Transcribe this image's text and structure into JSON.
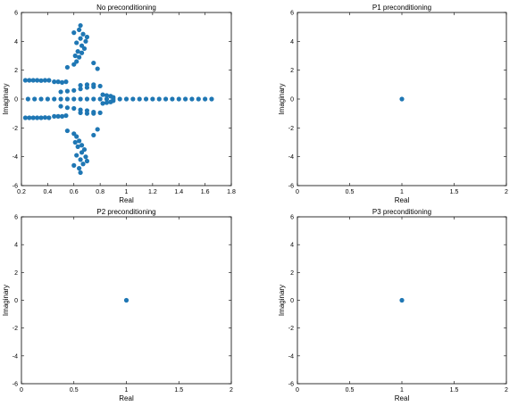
{
  "figure": {
    "marker_color": "#1f77b4",
    "axis_color": "#000000",
    "background": "#ffffff"
  },
  "chart_data": [
    {
      "type": "scatter",
      "title": "No preconditioning",
      "xlabel": "Real",
      "ylabel": "Imaginary",
      "xlim": [
        0.2,
        1.8
      ],
      "ylim": [
        -6,
        6
      ],
      "xticks": [
        "0.2",
        "0.4",
        "0.6",
        "0.8",
        "1",
        "1.2",
        "1.4",
        "1.6",
        "1.8"
      ],
      "yticks": [
        "-6",
        "-4",
        "-2",
        "0",
        "2",
        "4",
        "6"
      ],
      "xtick_values": [
        0.2,
        0.4,
        0.6,
        0.8,
        1.0,
        1.2,
        1.4,
        1.6,
        1.8
      ],
      "ytick_values": [
        -6,
        -4,
        -2,
        0,
        2,
        4,
        6
      ],
      "series": [
        {
          "marker": "filled-circle",
          "points": [
            [
              0.25,
              0
            ],
            [
              0.3,
              0
            ],
            [
              0.35,
              0
            ],
            [
              0.4,
              0
            ],
            [
              0.45,
              0
            ],
            [
              0.5,
              0
            ],
            [
              0.55,
              0
            ],
            [
              0.6,
              0
            ],
            [
              0.65,
              0
            ],
            [
              0.7,
              0
            ],
            [
              0.75,
              0
            ],
            [
              0.8,
              0
            ],
            [
              0.85,
              0
            ],
            [
              0.9,
              0
            ],
            [
              0.95,
              0
            ],
            [
              1.0,
              0
            ],
            [
              1.05,
              0
            ],
            [
              1.1,
              0
            ],
            [
              1.15,
              0
            ],
            [
              1.2,
              0
            ],
            [
              1.25,
              0
            ],
            [
              1.3,
              0
            ],
            [
              1.35,
              0
            ],
            [
              1.4,
              0
            ],
            [
              1.45,
              0
            ],
            [
              1.5,
              0
            ],
            [
              1.55,
              0
            ],
            [
              1.6,
              0
            ],
            [
              1.65,
              0
            ],
            [
              0.23,
              1.3
            ],
            [
              0.26,
              1.3
            ],
            [
              0.29,
              1.3
            ],
            [
              0.32,
              1.3
            ],
            [
              0.35,
              1.28
            ],
            [
              0.38,
              1.3
            ],
            [
              0.41,
              1.3
            ],
            [
              0.23,
              -1.3
            ],
            [
              0.26,
              -1.3
            ],
            [
              0.29,
              -1.3
            ],
            [
              0.32,
              -1.3
            ],
            [
              0.35,
              -1.3
            ],
            [
              0.38,
              -1.28
            ],
            [
              0.41,
              -1.3
            ],
            [
              0.45,
              1.2
            ],
            [
              0.48,
              1.2
            ],
            [
              0.51,
              1.15
            ],
            [
              0.54,
              1.2
            ],
            [
              0.45,
              -1.2
            ],
            [
              0.48,
              -1.2
            ],
            [
              0.51,
              -1.2
            ],
            [
              0.54,
              -1.15
            ],
            [
              0.5,
              0.5
            ],
            [
              0.55,
              0.55
            ],
            [
              0.6,
              0.6
            ],
            [
              0.65,
              0.7
            ],
            [
              0.7,
              0.8
            ],
            [
              0.75,
              0.85
            ],
            [
              0.8,
              0.9
            ],
            [
              0.5,
              -0.5
            ],
            [
              0.55,
              -0.6
            ],
            [
              0.6,
              -0.65
            ],
            [
              0.65,
              -0.75
            ],
            [
              0.7,
              -0.8
            ],
            [
              0.75,
              -0.9
            ],
            [
              0.8,
              -0.95
            ],
            [
              0.65,
              0.95
            ],
            [
              0.7,
              1.0
            ],
            [
              0.75,
              1.0
            ],
            [
              0.65,
              -0.95
            ],
            [
              0.7,
              -1.0
            ],
            [
              0.75,
              -1.0
            ],
            [
              0.82,
              0.3
            ],
            [
              0.85,
              0.25
            ],
            [
              0.88,
              0.2
            ],
            [
              0.9,
              0.12
            ],
            [
              0.82,
              -0.3
            ],
            [
              0.85,
              -0.25
            ],
            [
              0.88,
              -0.2
            ],
            [
              0.9,
              -0.12
            ],
            [
              0.6,
              2.4
            ],
            [
              0.62,
              2.6
            ],
            [
              0.64,
              2.9
            ],
            [
              0.66,
              3.2
            ],
            [
              0.68,
              3.5
            ],
            [
              0.62,
              3.9
            ],
            [
              0.65,
              4.2
            ],
            [
              0.67,
              4.5
            ],
            [
              0.64,
              4.8
            ],
            [
              0.65,
              5.1
            ],
            [
              0.61,
              3.0
            ],
            [
              0.63,
              3.3
            ],
            [
              0.66,
              3.7
            ],
            [
              0.69,
              4.0
            ],
            [
              0.6,
              4.6
            ],
            [
              0.7,
              4.3
            ],
            [
              0.6,
              -2.4
            ],
            [
              0.62,
              -2.6
            ],
            [
              0.64,
              -2.9
            ],
            [
              0.66,
              -3.2
            ],
            [
              0.68,
              -3.5
            ],
            [
              0.62,
              -3.9
            ],
            [
              0.65,
              -4.2
            ],
            [
              0.67,
              -4.5
            ],
            [
              0.64,
              -4.8
            ],
            [
              0.65,
              -5.1
            ],
            [
              0.61,
              -3.0
            ],
            [
              0.63,
              -3.3
            ],
            [
              0.66,
              -3.7
            ],
            [
              0.69,
              -4.0
            ],
            [
              0.6,
              -4.6
            ],
            [
              0.7,
              -4.3
            ],
            [
              0.75,
              2.5
            ],
            [
              0.78,
              2.1
            ],
            [
              0.75,
              -2.5
            ],
            [
              0.78,
              -2.1
            ],
            [
              0.55,
              2.2
            ],
            [
              0.55,
              -2.2
            ]
          ]
        }
      ]
    },
    {
      "type": "scatter",
      "title": "P1 preconditioning",
      "xlabel": "Real",
      "ylabel": "Imaginary",
      "xlim": [
        0,
        2
      ],
      "ylim": [
        -6,
        6
      ],
      "xticks": [
        "0",
        "0.5",
        "1",
        "1.5",
        "2"
      ],
      "yticks": [
        "-6",
        "-4",
        "-2",
        "0",
        "2",
        "4",
        "6"
      ],
      "xtick_values": [
        0,
        0.5,
        1,
        1.5,
        2
      ],
      "ytick_values": [
        -6,
        -4,
        -2,
        0,
        2,
        4,
        6
      ],
      "series": [
        {
          "marker": "filled-circle",
          "points": [
            [
              1,
              0
            ]
          ]
        }
      ]
    },
    {
      "type": "scatter",
      "title": "P2 preconditioning",
      "xlabel": "Real",
      "ylabel": "Imaginary",
      "xlim": [
        0,
        2
      ],
      "ylim": [
        -6,
        6
      ],
      "xticks": [
        "0",
        "0.5",
        "1",
        "1.5",
        "2"
      ],
      "yticks": [
        "-6",
        "-4",
        "-2",
        "0",
        "2",
        "4",
        "6"
      ],
      "xtick_values": [
        0,
        0.5,
        1,
        1.5,
        2
      ],
      "ytick_values": [
        -6,
        -4,
        -2,
        0,
        2,
        4,
        6
      ],
      "series": [
        {
          "marker": "filled-circle",
          "points": [
            [
              1,
              0
            ]
          ]
        }
      ]
    },
    {
      "type": "scatter",
      "title": "P3 preconditioning",
      "xlabel": "Real",
      "ylabel": "Imaginary",
      "xlim": [
        0,
        2
      ],
      "ylim": [
        -6,
        6
      ],
      "xticks": [
        "0",
        "0.5",
        "1",
        "1.5",
        "2"
      ],
      "yticks": [
        "-6",
        "-4",
        "-2",
        "0",
        "2",
        "4",
        "6"
      ],
      "xtick_values": [
        0,
        0.5,
        1,
        1.5,
        2
      ],
      "ytick_values": [
        -6,
        -4,
        -2,
        0,
        2,
        4,
        6
      ],
      "series": [
        {
          "marker": "filled-circle",
          "points": [
            [
              1,
              0
            ]
          ]
        }
      ]
    }
  ]
}
